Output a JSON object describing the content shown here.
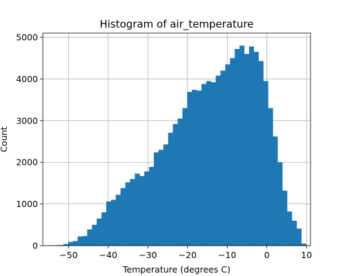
{
  "chart_data": {
    "type": "bar",
    "title": "Histogram of air_temperature",
    "xlabel": "Temperature (degrees C)",
    "ylabel": "Count",
    "xlim": [
      -56.5,
      11
    ],
    "ylim": [
      0,
      5100
    ],
    "grid": true,
    "bar_color": "#1f77b4",
    "x_ticks": [
      {
        "value": -50,
        "label": "−50"
      },
      {
        "value": -40,
        "label": "−40"
      },
      {
        "value": -30,
        "label": "−30"
      },
      {
        "value": -20,
        "label": "−20"
      },
      {
        "value": -10,
        "label": "−10"
      },
      {
        "value": 0,
        "label": "0"
      },
      {
        "value": 10,
        "label": "10"
      }
    ],
    "y_ticks": [
      {
        "value": 0,
        "label": "0"
      },
      {
        "value": 1000,
        "label": "1000"
      },
      {
        "value": 2000,
        "label": "2000"
      },
      {
        "value": 3000,
        "label": "3000"
      },
      {
        "value": 4000,
        "label": "4000"
      },
      {
        "value": 5000,
        "label": "5000"
      }
    ],
    "bin_start": -53.7,
    "bin_width": 1.2,
    "values": [
      10,
      15,
      40,
      90,
      110,
      220,
      230,
      390,
      500,
      650,
      800,
      1060,
      1100,
      1220,
      1380,
      1520,
      1600,
      1730,
      1670,
      1780,
      1890,
      2240,
      2300,
      2430,
      2710,
      2920,
      3050,
      3300,
      3690,
      3740,
      3720,
      3880,
      3950,
      3920,
      4080,
      4200,
      4350,
      4500,
      4720,
      4800,
      4600,
      4780,
      4650,
      4430,
      3950,
      3300,
      2620,
      2000,
      1320,
      820,
      600,
      410,
      50
    ]
  }
}
